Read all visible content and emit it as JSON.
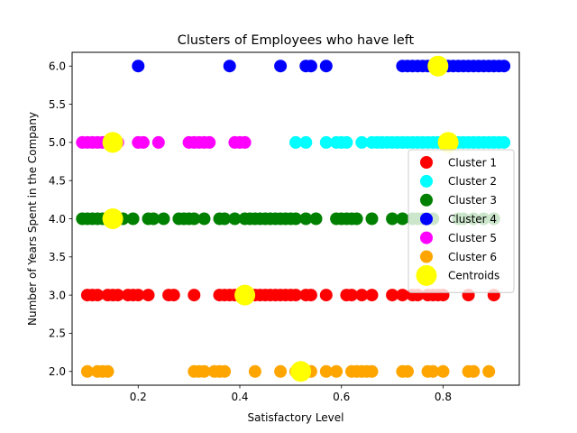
{
  "chart_data": {
    "type": "scatter",
    "title": "Clusters of Employees who have left",
    "xlabel": "Satisfactory Level",
    "ylabel": "Number of Years Spent in the Company",
    "xlim": [
      0.07,
      0.95
    ],
    "ylim": [
      1.82,
      6.18
    ],
    "xticks": [
      0.2,
      0.4,
      0.6,
      0.8
    ],
    "xtick_labels": [
      "0.2",
      "0.4",
      "0.6",
      "0.8"
    ],
    "yticks": [
      2.0,
      2.5,
      3.0,
      3.5,
      4.0,
      4.5,
      5.0,
      5.5,
      6.0
    ],
    "ytick_labels": [
      "2.0",
      "2.5",
      "3.0",
      "3.5",
      "4.0",
      "4.5",
      "5.0",
      "5.5",
      "6.0"
    ],
    "grid": false,
    "legend_position": "center-right",
    "series": [
      {
        "name": "Cluster 1",
        "color": "#ff0000",
        "y": 3,
        "x": [
          0.1,
          0.11,
          0.12,
          0.14,
          0.15,
          0.16,
          0.18,
          0.19,
          0.2,
          0.22,
          0.26,
          0.27,
          0.31,
          0.36,
          0.37,
          0.38,
          0.39,
          0.4,
          0.41,
          0.42,
          0.43,
          0.44,
          0.45,
          0.46,
          0.47,
          0.48,
          0.49,
          0.5,
          0.51,
          0.53,
          0.54,
          0.57,
          0.61,
          0.62,
          0.64,
          0.66,
          0.7,
          0.72,
          0.74,
          0.75,
          0.77,
          0.78,
          0.79,
          0.8,
          0.85,
          0.9
        ]
      },
      {
        "name": "Cluster 2",
        "color": "#00ffff",
        "y": 5,
        "x": [
          0.51,
          0.53,
          0.57,
          0.59,
          0.6,
          0.61,
          0.64,
          0.66,
          0.67,
          0.68,
          0.69,
          0.7,
          0.71,
          0.72,
          0.73,
          0.74,
          0.75,
          0.76,
          0.77,
          0.78,
          0.79,
          0.8,
          0.81,
          0.82,
          0.83,
          0.84,
          0.85,
          0.86,
          0.87,
          0.88,
          0.89,
          0.9,
          0.91,
          0.92
        ]
      },
      {
        "name": "Cluster 3",
        "color": "#008000",
        "y": 4,
        "x": [
          0.09,
          0.1,
          0.11,
          0.12,
          0.13,
          0.14,
          0.15,
          0.16,
          0.17,
          0.19,
          0.22,
          0.23,
          0.25,
          0.28,
          0.29,
          0.3,
          0.31,
          0.33,
          0.36,
          0.37,
          0.39,
          0.41,
          0.42,
          0.43,
          0.44,
          0.45,
          0.46,
          0.47,
          0.48,
          0.49,
          0.5,
          0.51,
          0.53,
          0.55,
          0.59,
          0.6,
          0.61,
          0.62,
          0.63,
          0.66,
          0.7,
          0.72,
          0.74,
          0.75,
          0.76,
          0.77,
          0.78,
          0.83,
          0.84,
          0.86,
          0.88,
          0.9
        ]
      },
      {
        "name": "Cluster 4",
        "color": "#0000ff",
        "y": 6,
        "x": [
          0.2,
          0.38,
          0.48,
          0.53,
          0.54,
          0.57,
          0.72,
          0.73,
          0.74,
          0.75,
          0.76,
          0.77,
          0.78,
          0.79,
          0.8,
          0.81,
          0.82,
          0.83,
          0.84,
          0.85,
          0.86,
          0.87,
          0.88,
          0.89,
          0.9,
          0.91,
          0.92
        ]
      },
      {
        "name": "Cluster 5",
        "color": "#ff00ff",
        "y": 5,
        "x": [
          0.09,
          0.1,
          0.11,
          0.12,
          0.13,
          0.16,
          0.2,
          0.21,
          0.24,
          0.3,
          0.31,
          0.32,
          0.33,
          0.34,
          0.39,
          0.4,
          0.41
        ]
      },
      {
        "name": "Cluster 6",
        "color": "#ffa500",
        "y": 2,
        "x": [
          0.1,
          0.12,
          0.13,
          0.14,
          0.31,
          0.32,
          0.33,
          0.35,
          0.36,
          0.37,
          0.43,
          0.48,
          0.51,
          0.54,
          0.57,
          0.59,
          0.62,
          0.63,
          0.64,
          0.65,
          0.66,
          0.72,
          0.73,
          0.77,
          0.78,
          0.8,
          0.85,
          0.86,
          0.89
        ]
      }
    ],
    "centroids": {
      "name": "Centroids",
      "color": "#ffff00",
      "points": [
        {
          "x": 0.41,
          "y": 3
        },
        {
          "x": 0.81,
          "y": 5
        },
        {
          "x": 0.15,
          "y": 4
        },
        {
          "x": 0.79,
          "y": 6
        },
        {
          "x": 0.15,
          "y": 5
        },
        {
          "x": 0.52,
          "y": 2
        }
      ]
    }
  }
}
